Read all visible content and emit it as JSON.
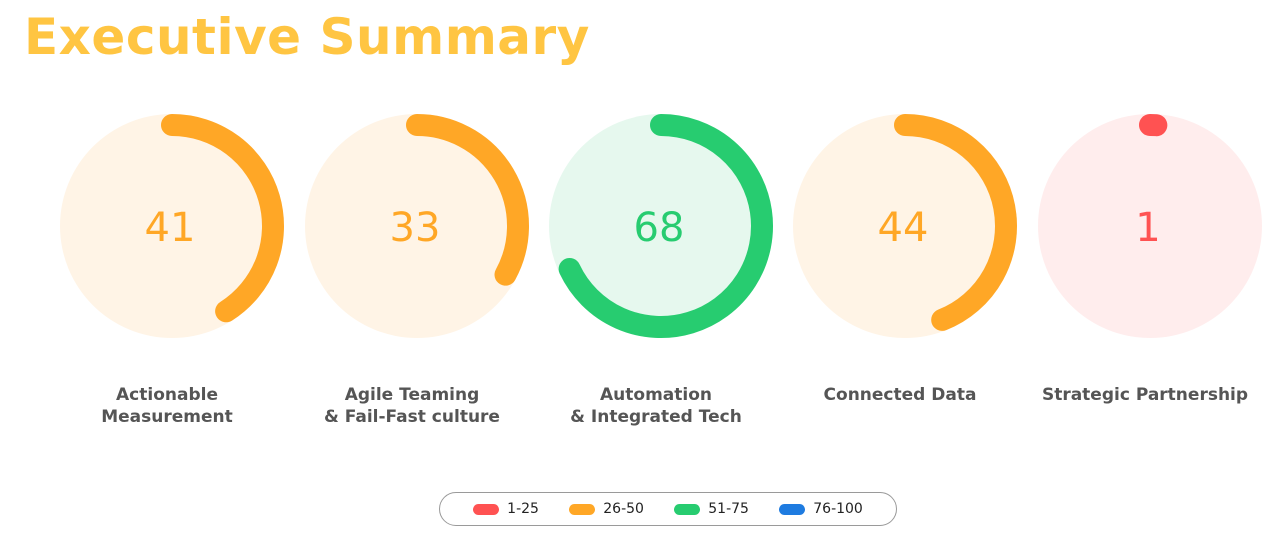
{
  "title": "Executive Summary",
  "chart_data": {
    "type": "gauge",
    "max": 100,
    "items": [
      {
        "label_line1": "Actionable",
        "label_line2": "Measurement",
        "value": 41
      },
      {
        "label_line1": "Agile Teaming",
        "label_line2": "& Fail-Fast culture",
        "value": 33
      },
      {
        "label_line1": "Automation",
        "label_line2": "& Integrated Tech",
        "value": 68
      },
      {
        "label_line1": "Connected Data",
        "label_line2": "",
        "value": 44
      },
      {
        "label_line1": "Strategic Partnership",
        "label_line2": "",
        "value": 1
      }
    ],
    "legend": [
      {
        "label": "1-25",
        "color": "#FF5252"
      },
      {
        "label": "26-50",
        "color": "#FFA726"
      },
      {
        "label": "51-75",
        "color": "#27CC70"
      },
      {
        "label": "76-100",
        "color": "#1E7BE0"
      }
    ]
  },
  "range_colors": {
    "1-25": {
      "stroke": "#FF5252",
      "fill": "#FFEDED"
    },
    "26-50": {
      "stroke": "#FFA726",
      "fill": "#FFF4E6"
    },
    "51-75": {
      "stroke": "#27CC70",
      "fill": "#E6F8EE"
    },
    "76-100": {
      "stroke": "#1E7BE0",
      "fill": "#E6F0FC"
    }
  }
}
